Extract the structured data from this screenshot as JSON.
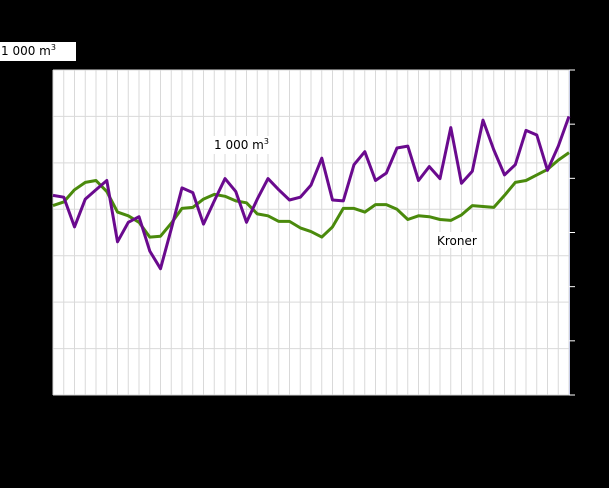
{
  "unit_label": {
    "base": "1 000 m",
    "sup": "3"
  },
  "colors": {
    "background": "#000000",
    "plot_bg": "#ffffff",
    "grid": "#d9d9d9",
    "volume_line": "#6a0a8e",
    "kroner_line": "#4a8a0c",
    "axis": "#c8cde8"
  },
  "chart_data": {
    "type": "line",
    "title": "",
    "xlabel": "",
    "ylabel": "1 000 m3",
    "y2label": "Kroner",
    "grid": true,
    "legend_position": "inline labels",
    "note": "Axis tick labels are not visible (black on black). Values below are relative, read from gridlines: left axis 7 equal steps (0-350), right axis 6 equal steps.",
    "x": [
      1,
      2,
      3,
      4,
      5,
      6,
      7,
      8,
      9,
      10,
      11,
      12,
      13,
      14,
      15,
      16,
      17,
      18,
      19,
      20,
      21,
      22,
      23,
      24,
      25,
      26,
      27,
      28,
      29,
      30,
      31,
      32,
      33,
      34,
      35,
      36,
      37,
      38,
      39,
      40,
      41,
      42,
      43,
      44,
      45,
      46,
      47,
      48,
      49
    ],
    "ylim": [
      0,
      350
    ],
    "series": [
      {
        "name": "1 000 m3",
        "label": "1 000 m",
        "label_sup": "3",
        "values": [
          215,
          213,
          181,
          211,
          221,
          231,
          165,
          186,
          192,
          155,
          136,
          179,
          223,
          218,
          184,
          209,
          233,
          219,
          186,
          211,
          233,
          221,
          210,
          213,
          226,
          255,
          210,
          209,
          248,
          262,
          231,
          239,
          266,
          268,
          231,
          246,
          233,
          288,
          228,
          241,
          296,
          264,
          237,
          248,
          285,
          280,
          242,
          268,
          300
        ]
      },
      {
        "name": "Kroner",
        "label": "Kroner",
        "values": [
          204,
          208,
          221,
          229,
          231,
          219,
          197,
          193,
          186,
          170,
          171,
          185,
          201,
          202,
          211,
          216,
          214,
          209,
          207,
          195,
          193,
          187,
          187,
          180,
          176,
          170,
          181,
          201,
          201,
          197,
          205,
          205,
          200,
          189,
          193,
          192,
          189,
          188,
          194,
          204,
          203,
          202,
          215,
          229,
          231,
          237,
          243,
          253,
          261
        ]
      }
    ]
  }
}
